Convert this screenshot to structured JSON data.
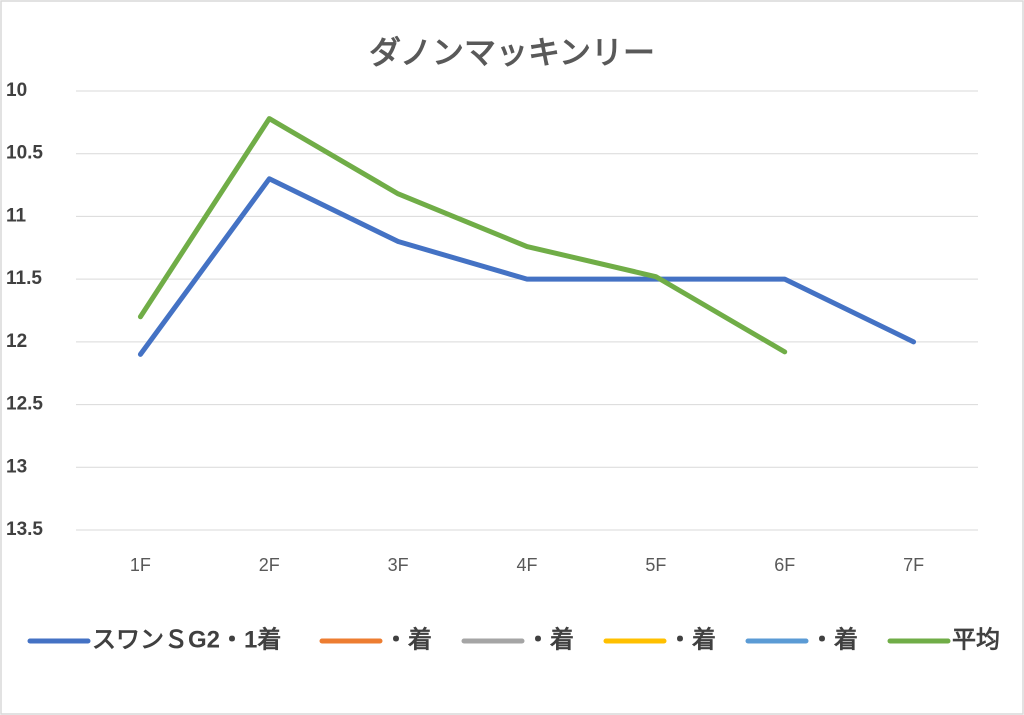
{
  "chart_data": {
    "type": "line",
    "title": "ダノンマッキンリー",
    "categories": [
      "1F",
      "2F",
      "3F",
      "4F",
      "5F",
      "6F",
      "7F"
    ],
    "series": [
      {
        "name": "スワンＳG2・1着",
        "color": "#4472c4",
        "values": [
          12.1,
          10.7,
          11.2,
          11.5,
          11.5,
          11.5,
          12.0
        ]
      },
      {
        "name": "・着",
        "color": "#ed7d31",
        "values": [
          null,
          null,
          null,
          null,
          null,
          null,
          null
        ]
      },
      {
        "name": "・着",
        "color": "#a5a5a5",
        "values": [
          null,
          null,
          null,
          null,
          null,
          null,
          null
        ]
      },
      {
        "name": "・着",
        "color": "#ffc000",
        "values": [
          null,
          null,
          null,
          null,
          null,
          null,
          null
        ]
      },
      {
        "name": "・着",
        "color": "#5b9bd5",
        "values": [
          null,
          null,
          null,
          null,
          null,
          null,
          null
        ]
      },
      {
        "name": "平均",
        "color": "#70ad47",
        "values": [
          11.8,
          10.22,
          10.82,
          11.24,
          11.48,
          12.08,
          null
        ]
      }
    ],
    "ylim": [
      10,
      13.5
    ],
    "yticks": [
      10,
      10.5,
      11,
      11.5,
      12,
      12.5,
      13,
      13.5
    ],
    "y_reversed": true,
    "grid": true,
    "legend": "bottom"
  }
}
